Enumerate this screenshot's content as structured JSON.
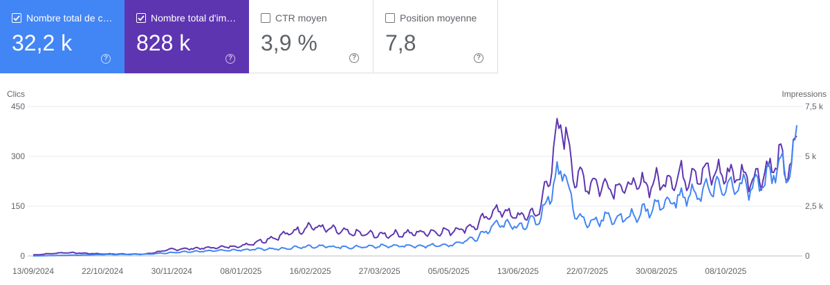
{
  "cards": [
    {
      "label": "Nombre total de c…",
      "value": "32,2 k",
      "checked": true,
      "color": "#4285f4"
    },
    {
      "label": "Nombre total d'im…",
      "value": "828 k",
      "checked": true,
      "color": "#5e35b1"
    },
    {
      "label": "CTR moyen",
      "value": "3,9 %",
      "checked": false,
      "color": "#ffffff"
    },
    {
      "label": "Position moyenne",
      "value": "7,8",
      "checked": false,
      "color": "#ffffff"
    }
  ],
  "help_glyph": "?",
  "chart_data": {
    "type": "line",
    "left_axis_label": "Clics",
    "right_axis_label": "Impressions",
    "left_ticks": [
      "0",
      "150",
      "300",
      "450"
    ],
    "right_ticks": [
      "0",
      "2,5 k",
      "5 k",
      "7,5 k"
    ],
    "left_ylim": [
      0,
      450
    ],
    "right_ylim": [
      0,
      7500
    ],
    "x_labels": [
      "13/09/2024",
      "22/10/2024",
      "30/11/2024",
      "08/01/2025",
      "16/02/2025",
      "27/03/2025",
      "05/05/2025",
      "13/06/2025",
      "22/07/2025",
      "30/08/2025",
      "08/10/2025"
    ],
    "start_date": "13/09/2024",
    "end_date": "17/11/2025",
    "grid": true,
    "series": [
      {
        "name": "Clics",
        "axis": "left",
        "color": "#4285f4",
        "x": [
          "13/09/2024",
          "01/10/2024",
          "22/10/2024",
          "15/11/2024",
          "30/11/2024",
          "20/12/2024",
          "08/01/2025",
          "30/01/2025",
          "16/02/2025",
          "10/03/2025",
          "27/03/2025",
          "15/04/2025",
          "05/05/2025",
          "20/05/2025",
          "01/06/2025",
          "13/06/2025",
          "25/06/2025",
          "08/07/2025",
          "15/07/2025",
          "22/07/2025",
          "01/08/2025",
          "12/08/2025",
          "30/08/2025",
          "20/09/2025",
          "08/10/2025",
          "25/10/2025",
          "08/11/2025",
          "14/11/2025",
          "17/11/2025"
        ],
        "values": [
          0,
          2,
          4,
          5,
          10,
          15,
          18,
          22,
          30,
          26,
          30,
          30,
          32,
          52,
          95,
          90,
          110,
          280,
          125,
          100,
          115,
          112,
          150,
          188,
          210,
          205,
          280,
          245,
          390
        ]
      },
      {
        "name": "Impressions",
        "axis": "right",
        "color": "#5e35b1",
        "x": [
          "13/09/2024",
          "01/10/2024",
          "22/10/2024",
          "15/11/2024",
          "30/11/2024",
          "20/12/2024",
          "08/01/2025",
          "30/01/2025",
          "16/02/2025",
          "10/03/2025",
          "27/03/2025",
          "15/04/2025",
          "05/05/2025",
          "20/05/2025",
          "01/06/2025",
          "13/06/2025",
          "25/06/2025",
          "08/07/2025",
          "15/07/2025",
          "22/07/2025",
          "01/08/2025",
          "12/08/2025",
          "30/08/2025",
          "20/09/2025",
          "08/10/2025",
          "25/10/2025",
          "08/11/2025",
          "14/11/2025",
          "17/11/2025"
        ],
        "values": [
          50,
          170,
          100,
          90,
          330,
          400,
          500,
          1000,
          1500,
          1150,
          1050,
          1150,
          1250,
          1500,
          2350,
          1950,
          2200,
          6850,
          4000,
          3700,
          3550,
          3450,
          3700,
          4150,
          4150,
          3950,
          4800,
          4150,
          6500
        ]
      }
    ]
  }
}
